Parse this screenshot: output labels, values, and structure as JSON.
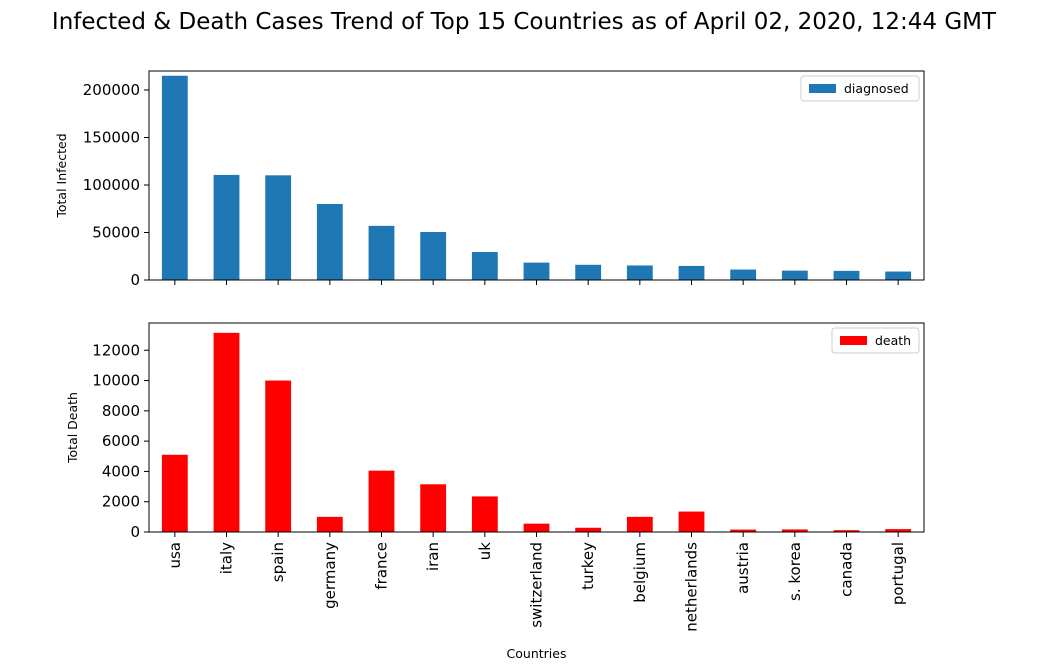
{
  "title": "Infected & Death Cases Trend of Top 15 Countries as of April 02, 2020, 12:44 GMT",
  "chart_data": [
    {
      "type": "bar",
      "categories": [
        "usa",
        "italy",
        "spain",
        "germany",
        "france",
        "iran",
        "uk",
        "switzerland",
        "turkey",
        "belgium",
        "netherlands",
        "austria",
        "s. korea",
        "canada",
        "portugal"
      ],
      "series": [
        {
          "name": "diagnosed",
          "color": "#1f77b4",
          "values": [
            215000,
            110600,
            110200,
            80000,
            57000,
            50500,
            29500,
            18300,
            16000,
            15300,
            14800,
            11000,
            9900,
            9600,
            8900
          ]
        }
      ],
      "title": "",
      "xlabel": "",
      "ylabel": "Total Infected",
      "ylim": [
        0,
        220000
      ],
      "yticks": [
        0,
        50000,
        100000,
        150000,
        200000
      ],
      "ytick_labels": [
        "0",
        "50000",
        "100000",
        "150000",
        "200000"
      ],
      "legend": "top-right",
      "grid": false,
      "show_xtick_labels": false
    },
    {
      "type": "bar",
      "categories": [
        "usa",
        "italy",
        "spain",
        "germany",
        "france",
        "iran",
        "uk",
        "switzerland",
        "turkey",
        "belgium",
        "netherlands",
        "austria",
        "s. korea",
        "canada",
        "portugal"
      ],
      "series": [
        {
          "name": "death",
          "color": "#ff0000",
          "values": [
            5100,
            13150,
            10000,
            1000,
            4050,
            3150,
            2350,
            550,
            280,
            1000,
            1350,
            160,
            170,
            120,
            190
          ]
        }
      ],
      "title": "",
      "xlabel": "Countries",
      "ylabel": "Total Death",
      "ylim": [
        0,
        13800
      ],
      "yticks": [
        0,
        2000,
        4000,
        6000,
        8000,
        10000,
        12000
      ],
      "ytick_labels": [
        "0",
        "2000",
        "4000",
        "6000",
        "8000",
        "10000",
        "12000"
      ],
      "legend": "top-right",
      "grid": false,
      "show_xtick_labels": true
    }
  ]
}
